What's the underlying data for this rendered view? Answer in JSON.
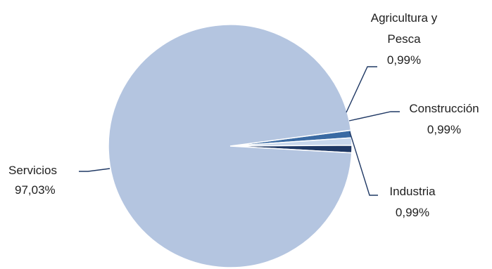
{
  "chart_data": {
    "type": "pie",
    "title": "",
    "slices": [
      {
        "label": "Servicios",
        "value": 97.03,
        "value_label": "97,03%",
        "color": "#b4c5e0"
      },
      {
        "label": "Agricultura y Pesca",
        "label_lines": [
          "Agricultura y",
          "Pesca"
        ],
        "value": 0.99,
        "value_label": "0,99%",
        "color": "#3a6aa3"
      },
      {
        "label": "Construcción",
        "value": 0.99,
        "value_label": "0,99%",
        "color": "#c8d7ec"
      },
      {
        "label": "Industria",
        "value": 0.99,
        "value_label": "0,99%",
        "color": "#1f3864"
      }
    ],
    "legend": "none",
    "labels": "outside with leader lines"
  }
}
